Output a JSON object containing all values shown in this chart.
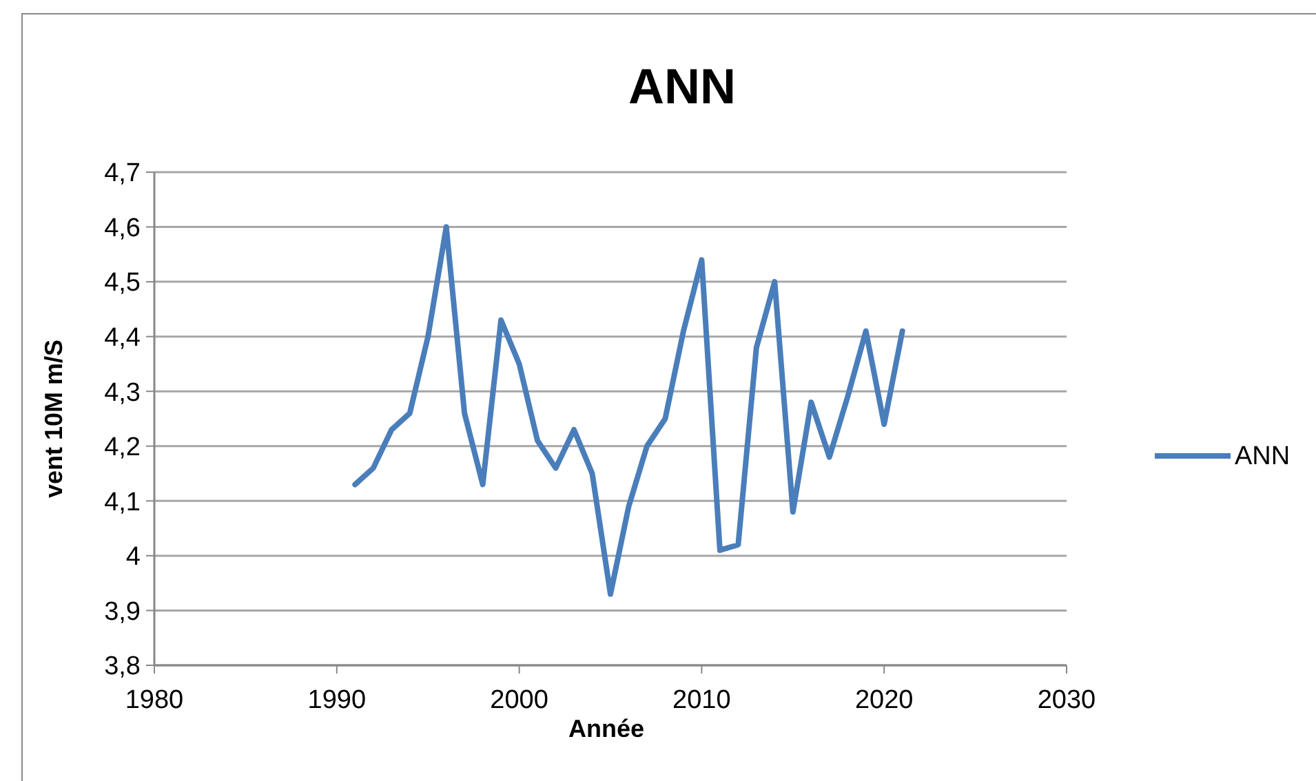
{
  "chart_data": {
    "type": "line",
    "title": "ANN",
    "xlabel": "Année",
    "ylabel": "vent 10M m/S",
    "x": [
      1991,
      1992,
      1993,
      1994,
      1995,
      1996,
      1997,
      1998,
      1999,
      2000,
      2001,
      2002,
      2003,
      2004,
      2005,
      2006,
      2007,
      2008,
      2009,
      2010,
      2011,
      2012,
      2013,
      2014,
      2015,
      2016,
      2017,
      2018,
      2019,
      2020,
      2021
    ],
    "series": [
      {
        "name": "ANN",
        "color": "#4a7ebb",
        "values": [
          4.13,
          4.16,
          4.23,
          4.26,
          4.4,
          4.6,
          4.26,
          4.13,
          4.43,
          4.35,
          4.21,
          4.16,
          4.23,
          4.15,
          3.93,
          4.09,
          4.2,
          4.25,
          4.41,
          4.54,
          4.01,
          4.02,
          4.38,
          4.5,
          4.08,
          4.28,
          4.18,
          4.29,
          4.41,
          4.24,
          4.41
        ]
      }
    ],
    "xlim": [
      1980,
      2030
    ],
    "xticks": [
      1980,
      1990,
      2000,
      2010,
      2020,
      2030
    ],
    "ylim": [
      3.8,
      4.7
    ],
    "yticks": [
      {
        "value": 3.8,
        "label": "3,8"
      },
      {
        "value": 3.9,
        "label": "3,9"
      },
      {
        "value": 4,
        "label": "4"
      },
      {
        "value": 4.1,
        "label": "4,1"
      },
      {
        "value": 4.2,
        "label": "4,2"
      },
      {
        "value": 4.3,
        "label": "4,3"
      },
      {
        "value": 4.4,
        "label": "4,4"
      },
      {
        "value": 4.5,
        "label": "4,5"
      },
      {
        "value": 4.6,
        "label": "4,6"
      },
      {
        "value": 4.7,
        "label": "4,7"
      }
    ],
    "grid": "y",
    "legend": "right",
    "marker": "none",
    "line_style": "solid"
  }
}
